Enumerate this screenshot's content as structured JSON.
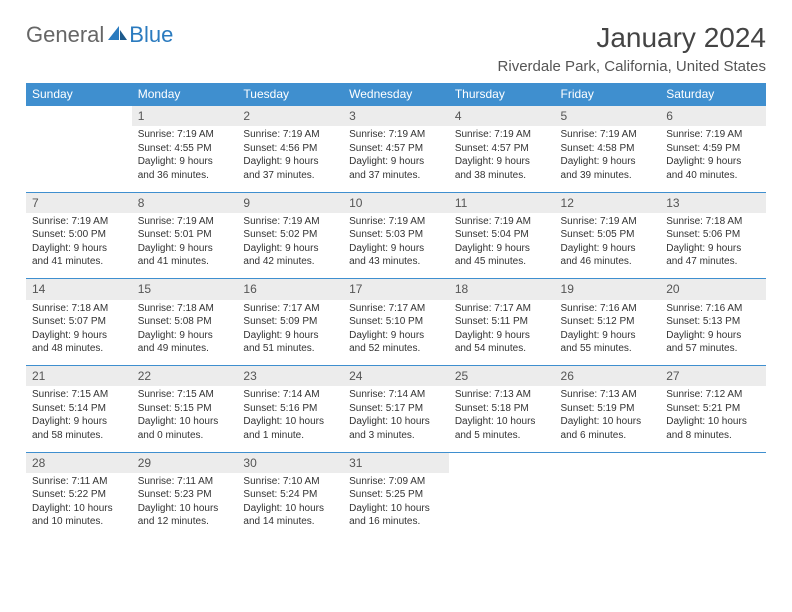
{
  "logo": {
    "text1": "General",
    "text2": "Blue"
  },
  "title": "January 2024",
  "location": "Riverdale Park, California, United States",
  "colors": {
    "header_bg": "#3f8fcf",
    "header_text": "#ffffff",
    "daynum_bg": "#ececec",
    "divider": "#3f8fcf",
    "body_text": "#333333",
    "logo_gray": "#666666",
    "logo_blue": "#2b7bbf"
  },
  "typography": {
    "title_fontsize": 28,
    "location_fontsize": 15,
    "header_fontsize": 12,
    "daynum_fontsize": 12,
    "cell_fontsize": 10
  },
  "weekdays": [
    "Sunday",
    "Monday",
    "Tuesday",
    "Wednesday",
    "Thursday",
    "Friday",
    "Saturday"
  ],
  "weeks": [
    [
      null,
      {
        "n": "1",
        "sr": "Sunrise: 7:19 AM",
        "ss": "Sunset: 4:55 PM",
        "dl": "Daylight: 9 hours and 36 minutes."
      },
      {
        "n": "2",
        "sr": "Sunrise: 7:19 AM",
        "ss": "Sunset: 4:56 PM",
        "dl": "Daylight: 9 hours and 37 minutes."
      },
      {
        "n": "3",
        "sr": "Sunrise: 7:19 AM",
        "ss": "Sunset: 4:57 PM",
        "dl": "Daylight: 9 hours and 37 minutes."
      },
      {
        "n": "4",
        "sr": "Sunrise: 7:19 AM",
        "ss": "Sunset: 4:57 PM",
        "dl": "Daylight: 9 hours and 38 minutes."
      },
      {
        "n": "5",
        "sr": "Sunrise: 7:19 AM",
        "ss": "Sunset: 4:58 PM",
        "dl": "Daylight: 9 hours and 39 minutes."
      },
      {
        "n": "6",
        "sr": "Sunrise: 7:19 AM",
        "ss": "Sunset: 4:59 PM",
        "dl": "Daylight: 9 hours and 40 minutes."
      }
    ],
    [
      {
        "n": "7",
        "sr": "Sunrise: 7:19 AM",
        "ss": "Sunset: 5:00 PM",
        "dl": "Daylight: 9 hours and 41 minutes."
      },
      {
        "n": "8",
        "sr": "Sunrise: 7:19 AM",
        "ss": "Sunset: 5:01 PM",
        "dl": "Daylight: 9 hours and 41 minutes."
      },
      {
        "n": "9",
        "sr": "Sunrise: 7:19 AM",
        "ss": "Sunset: 5:02 PM",
        "dl": "Daylight: 9 hours and 42 minutes."
      },
      {
        "n": "10",
        "sr": "Sunrise: 7:19 AM",
        "ss": "Sunset: 5:03 PM",
        "dl": "Daylight: 9 hours and 43 minutes."
      },
      {
        "n": "11",
        "sr": "Sunrise: 7:19 AM",
        "ss": "Sunset: 5:04 PM",
        "dl": "Daylight: 9 hours and 45 minutes."
      },
      {
        "n": "12",
        "sr": "Sunrise: 7:19 AM",
        "ss": "Sunset: 5:05 PM",
        "dl": "Daylight: 9 hours and 46 minutes."
      },
      {
        "n": "13",
        "sr": "Sunrise: 7:18 AM",
        "ss": "Sunset: 5:06 PM",
        "dl": "Daylight: 9 hours and 47 minutes."
      }
    ],
    [
      {
        "n": "14",
        "sr": "Sunrise: 7:18 AM",
        "ss": "Sunset: 5:07 PM",
        "dl": "Daylight: 9 hours and 48 minutes."
      },
      {
        "n": "15",
        "sr": "Sunrise: 7:18 AM",
        "ss": "Sunset: 5:08 PM",
        "dl": "Daylight: 9 hours and 49 minutes."
      },
      {
        "n": "16",
        "sr": "Sunrise: 7:17 AM",
        "ss": "Sunset: 5:09 PM",
        "dl": "Daylight: 9 hours and 51 minutes."
      },
      {
        "n": "17",
        "sr": "Sunrise: 7:17 AM",
        "ss": "Sunset: 5:10 PM",
        "dl": "Daylight: 9 hours and 52 minutes."
      },
      {
        "n": "18",
        "sr": "Sunrise: 7:17 AM",
        "ss": "Sunset: 5:11 PM",
        "dl": "Daylight: 9 hours and 54 minutes."
      },
      {
        "n": "19",
        "sr": "Sunrise: 7:16 AM",
        "ss": "Sunset: 5:12 PM",
        "dl": "Daylight: 9 hours and 55 minutes."
      },
      {
        "n": "20",
        "sr": "Sunrise: 7:16 AM",
        "ss": "Sunset: 5:13 PM",
        "dl": "Daylight: 9 hours and 57 minutes."
      }
    ],
    [
      {
        "n": "21",
        "sr": "Sunrise: 7:15 AM",
        "ss": "Sunset: 5:14 PM",
        "dl": "Daylight: 9 hours and 58 minutes."
      },
      {
        "n": "22",
        "sr": "Sunrise: 7:15 AM",
        "ss": "Sunset: 5:15 PM",
        "dl": "Daylight: 10 hours and 0 minutes."
      },
      {
        "n": "23",
        "sr": "Sunrise: 7:14 AM",
        "ss": "Sunset: 5:16 PM",
        "dl": "Daylight: 10 hours and 1 minute."
      },
      {
        "n": "24",
        "sr": "Sunrise: 7:14 AM",
        "ss": "Sunset: 5:17 PM",
        "dl": "Daylight: 10 hours and 3 minutes."
      },
      {
        "n": "25",
        "sr": "Sunrise: 7:13 AM",
        "ss": "Sunset: 5:18 PM",
        "dl": "Daylight: 10 hours and 5 minutes."
      },
      {
        "n": "26",
        "sr": "Sunrise: 7:13 AM",
        "ss": "Sunset: 5:19 PM",
        "dl": "Daylight: 10 hours and 6 minutes."
      },
      {
        "n": "27",
        "sr": "Sunrise: 7:12 AM",
        "ss": "Sunset: 5:21 PM",
        "dl": "Daylight: 10 hours and 8 minutes."
      }
    ],
    [
      {
        "n": "28",
        "sr": "Sunrise: 7:11 AM",
        "ss": "Sunset: 5:22 PM",
        "dl": "Daylight: 10 hours and 10 minutes."
      },
      {
        "n": "29",
        "sr": "Sunrise: 7:11 AM",
        "ss": "Sunset: 5:23 PM",
        "dl": "Daylight: 10 hours and 12 minutes."
      },
      {
        "n": "30",
        "sr": "Sunrise: 7:10 AM",
        "ss": "Sunset: 5:24 PM",
        "dl": "Daylight: 10 hours and 14 minutes."
      },
      {
        "n": "31",
        "sr": "Sunrise: 7:09 AM",
        "ss": "Sunset: 5:25 PM",
        "dl": "Daylight: 10 hours and 16 minutes."
      },
      null,
      null,
      null
    ]
  ]
}
